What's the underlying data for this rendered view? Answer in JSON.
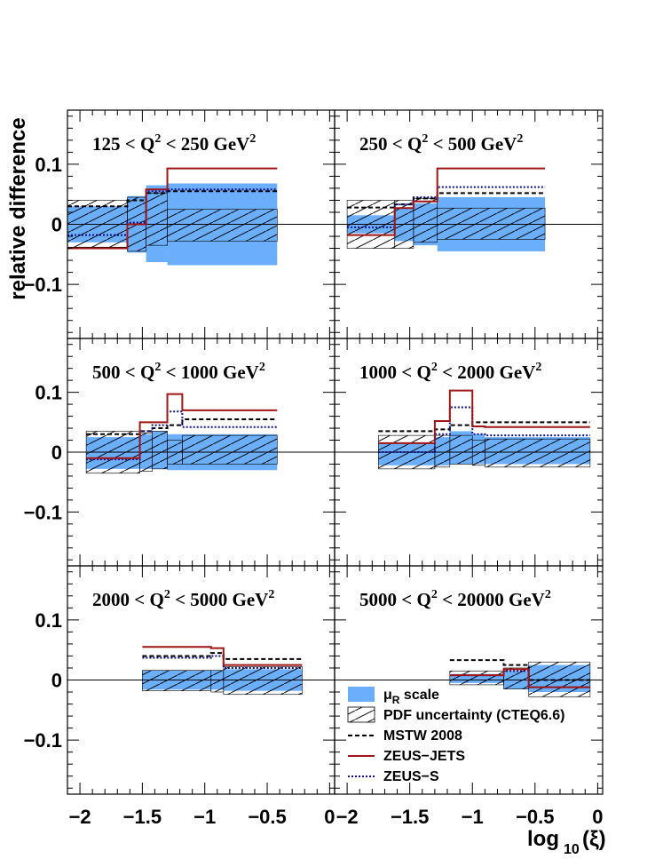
{
  "chart_data": {
    "type": "step",
    "ylabel": "relative difference",
    "xlabel_main": "log",
    "xlabel_sub": "10",
    "xlabel_arg": "(ξ)",
    "xlim": [
      -2.1,
      0.04
    ],
    "ylim": [
      -0.19,
      0.19
    ],
    "x_ticks": [
      -2,
      -1.5,
      -1,
      -0.5,
      0
    ],
    "x_tick_labels": [
      "−2",
      "−1.5",
      "−1",
      "−0.5",
      "0"
    ],
    "y_ticks": [
      -0.1,
      0,
      0.1
    ],
    "y_tick_labels": [
      "−0.1",
      "0",
      "0.1"
    ],
    "colors": {
      "mu_r_band": "#6aaefc",
      "mstw": "#000000",
      "zeus_jets": "#a01515",
      "zeus_s": "#10108a"
    },
    "legend": {
      "mu_r": "scale",
      "mu_r_symbol": "μ",
      "mu_r_sub": "R",
      "pdf": "PDF uncertainty (CTEQ6.6)",
      "mstw": "MSTW 2008",
      "zeus_jets": "ZEUS−JETS",
      "zeus_s": "ZEUS−S"
    },
    "panels": [
      {
        "label": {
          "lo": "125 < Q",
          "mid": " < 250 GeV"
        },
        "edges": [
          -2.1,
          -1.62,
          -1.47,
          -1.3,
          -0.42
        ],
        "mu_r_band": [
          [
            -0.03,
            0.03
          ],
          [
            -0.047,
            0.047
          ],
          [
            -0.063,
            0.065
          ],
          [
            -0.068,
            0.068
          ]
        ],
        "pdf_band": [
          [
            -0.038,
            0.04
          ],
          [
            -0.045,
            0.045
          ],
          [
            -0.035,
            0.052
          ],
          [
            -0.028,
            0.025
          ]
        ],
        "mstw": [
          0.03,
          0.04,
          0.052,
          0.055
        ],
        "zeus_jets": [
          -0.04,
          0.0,
          0.058,
          0.093
        ],
        "zeus_s": [
          -0.018,
          0.003,
          0.055,
          0.058
        ]
      },
      {
        "label": {
          "lo": "250 < Q",
          "mid": " < 500 GeV"
        },
        "edges": [
          -2.0,
          -1.62,
          -1.47,
          -1.28,
          -0.42
        ],
        "mu_r_band": [
          [
            -0.015,
            0.015
          ],
          [
            -0.028,
            0.028
          ],
          [
            -0.035,
            0.035
          ],
          [
            -0.045,
            0.045
          ]
        ],
        "pdf_band": [
          [
            -0.04,
            0.04
          ],
          [
            -0.04,
            0.04
          ],
          [
            -0.03,
            0.043
          ],
          [
            -0.025,
            0.027
          ]
        ],
        "mstw": [
          0.028,
          0.033,
          0.043,
          0.052
        ],
        "zeus_jets": [
          -0.018,
          0.027,
          0.038,
          0.093
        ],
        "zeus_s": [
          -0.005,
          0.033,
          0.045,
          0.062
        ]
      },
      {
        "label": {
          "lo": "500 < Q",
          "mid": " < 1000 GeV"
        },
        "edges": [
          -1.95,
          -1.52,
          -1.42,
          -1.3,
          -1.18,
          -0.42
        ],
        "mu_r_band": [
          [
            -0.028,
            0.025
          ],
          [
            -0.028,
            0.03
          ],
          [
            -0.028,
            0.035
          ],
          [
            -0.03,
            0.03
          ],
          [
            -0.03,
            0.03
          ]
        ],
        "pdf_band": [
          [
            -0.035,
            0.035
          ],
          [
            -0.032,
            0.032
          ],
          [
            -0.028,
            0.035
          ],
          [
            -0.02,
            0.02
          ],
          [
            -0.02,
            0.028
          ]
        ],
        "mstw": [
          0.03,
          0.035,
          0.04,
          0.045,
          0.055
        ],
        "zeus_jets": [
          -0.01,
          0.05,
          0.05,
          0.097,
          0.07
        ],
        "zeus_s": [
          -0.012,
          0.035,
          0.045,
          0.068,
          0.042
        ]
      },
      {
        "label": {
          "lo": "1000 < Q",
          "mid": " < 2000 GeV"
        },
        "edges": [
          -1.75,
          -1.3,
          -1.18,
          -1.0,
          -0.9,
          -0.06
        ],
        "mu_r_band": [
          [
            -0.022,
            0.015
          ],
          [
            -0.022,
            0.025
          ],
          [
            -0.02,
            0.035
          ],
          [
            -0.02,
            0.03
          ],
          [
            -0.02,
            0.025
          ]
        ],
        "pdf_band": [
          [
            -0.028,
            0.028
          ],
          [
            -0.025,
            0.028
          ],
          [
            -0.02,
            0.028
          ],
          [
            -0.022,
            0.02
          ],
          [
            -0.025,
            0.022
          ]
        ],
        "mstw": [
          0.035,
          0.038,
          0.045,
          0.05,
          0.05
        ],
        "zeus_jets": [
          0.015,
          0.052,
          0.103,
          0.043,
          0.042
        ],
        "zeus_s": [
          0.0,
          0.03,
          0.075,
          0.03,
          0.028
        ]
      },
      {
        "label": {
          "lo": "2000 < Q",
          "mid": " < 5000 GeV"
        },
        "edges": [
          -1.5,
          -0.95,
          -0.85,
          -0.22
        ],
        "mu_r_band": [
          [
            -0.016,
            0.016
          ],
          [
            -0.016,
            0.016
          ],
          [
            -0.018,
            0.018
          ]
        ],
        "pdf_band": [
          [
            -0.018,
            0.016
          ],
          [
            -0.02,
            0.016
          ],
          [
            -0.024,
            0.022
          ]
        ],
        "mstw": [
          0.04,
          0.045,
          0.035
        ],
        "zeus_jets": [
          0.055,
          0.053,
          0.025
        ],
        "zeus_s": [
          0.037,
          0.04,
          0.02
        ]
      },
      {
        "label": {
          "lo": "5000 < Q",
          "mid": " < 20000 GeV"
        },
        "edges": [
          -1.18,
          -0.75,
          -0.55,
          -0.06
        ],
        "mu_r_band": [
          [
            -0.005,
            0.01
          ],
          [
            -0.015,
            0.015
          ],
          [
            -0.02,
            0.025
          ]
        ],
        "pdf_band": [
          [
            -0.008,
            0.015
          ],
          [
            -0.015,
            0.02
          ],
          [
            -0.028,
            0.03
          ]
        ],
        "mstw": [
          0.033,
          0.025,
          0.0
        ],
        "zeus_jets": [
          0.008,
          0.018,
          -0.012
        ],
        "zeus_s": [
          0.008,
          0.015,
          -0.012
        ]
      }
    ]
  }
}
